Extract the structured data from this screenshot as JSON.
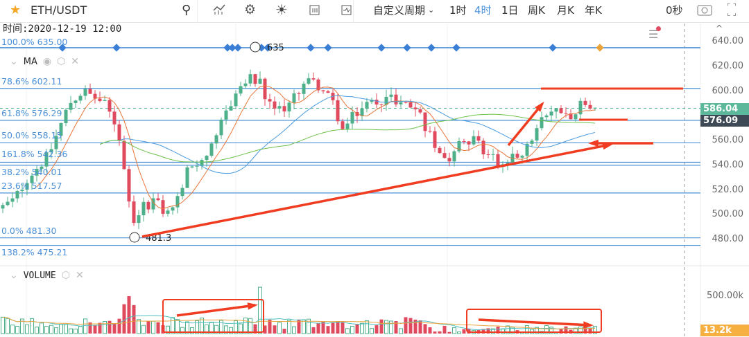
{
  "toolbar": {
    "symbol": "ETH/USDT",
    "custom_period": "自定义周期",
    "periods": [
      "1时",
      "4时",
      "1日",
      "周K",
      "月K",
      "年K"
    ],
    "active_period": "4时",
    "countdown": "0秒",
    "accent": "#4a90d9"
  },
  "info": {
    "time_label": "时间:2020-12-19 12:00"
  },
  "indicators": {
    "ma": "MA",
    "volume": "VOLUME"
  },
  "fib_levels": [
    {
      "label": "100.0% 635.00",
      "price": 635
    },
    {
      "label": "78.6% 602.11",
      "price": 602.11
    },
    {
      "label": "61.8% 576.29",
      "price": 576.29
    },
    {
      "label": "50.0% 558.15",
      "price": 558.15
    },
    {
      "label": "161.8% 542.36",
      "price": 542.36
    },
    {
      "label": "38.2% 540.01",
      "price": 540.01
    },
    {
      "label": "23.6% 517.57",
      "price": 517.57
    },
    {
      "label": "0.0% 481.30",
      "price": 481.3
    },
    {
      "label": "138.2% 475.21",
      "price": 475.21
    }
  ],
  "markers": {
    "high": "635",
    "low": "481.3"
  },
  "price_axis": {
    "ticks": [
      "640.00",
      "620.00",
      "600.00",
      "580.00",
      "560.00",
      "540.00",
      "520.00",
      "500.00",
      "480.00"
    ],
    "last_price": "586.04",
    "cursor_price": "576.09",
    "volume_tick": "500.00k",
    "last_volume": "13.2k"
  },
  "colors": {
    "up": "#4eb08a",
    "down": "#e04a5e",
    "ma_fast": "#e8763a",
    "ma_mid": "#4a9be0",
    "ma_slow": "#6cc24a",
    "annotation": "#f03c20"
  },
  "chart_data": {
    "type": "candlestick",
    "ylim": [
      470,
      645
    ],
    "price_path": [
      [
        0,
        505
      ],
      [
        20,
        512
      ],
      [
        40,
        530
      ],
      [
        70,
        548
      ],
      [
        100,
        590
      ],
      [
        120,
        600
      ],
      [
        150,
        590
      ],
      [
        170,
        570
      ],
      [
        182,
        525
      ],
      [
        192,
        495
      ],
      [
        205,
        505
      ],
      [
        222,
        512
      ],
      [
        240,
        500
      ],
      [
        258,
        515
      ],
      [
        272,
        538
      ],
      [
        292,
        546
      ],
      [
        310,
        556
      ],
      [
        322,
        580
      ],
      [
        342,
        600
      ],
      [
        360,
        610
      ],
      [
        375,
        606
      ],
      [
        386,
        588
      ],
      [
        402,
        585
      ],
      [
        420,
        590
      ],
      [
        440,
        610
      ],
      [
        460,
        604
      ],
      [
        480,
        590
      ],
      [
        494,
        568
      ],
      [
        510,
        580
      ],
      [
        530,
        590
      ],
      [
        560,
        595
      ],
      [
        582,
        590
      ],
      [
        602,
        585
      ],
      [
        616,
        568
      ],
      [
        632,
        553
      ],
      [
        646,
        545
      ],
      [
        662,
        562
      ],
      [
        682,
        560
      ],
      [
        702,
        550
      ],
      [
        722,
        540
      ],
      [
        742,
        546
      ],
      [
        762,
        556
      ],
      [
        782,
        576
      ],
      [
        800,
        586
      ],
      [
        820,
        580
      ],
      [
        840,
        590
      ],
      [
        858,
        586
      ]
    ]
  }
}
